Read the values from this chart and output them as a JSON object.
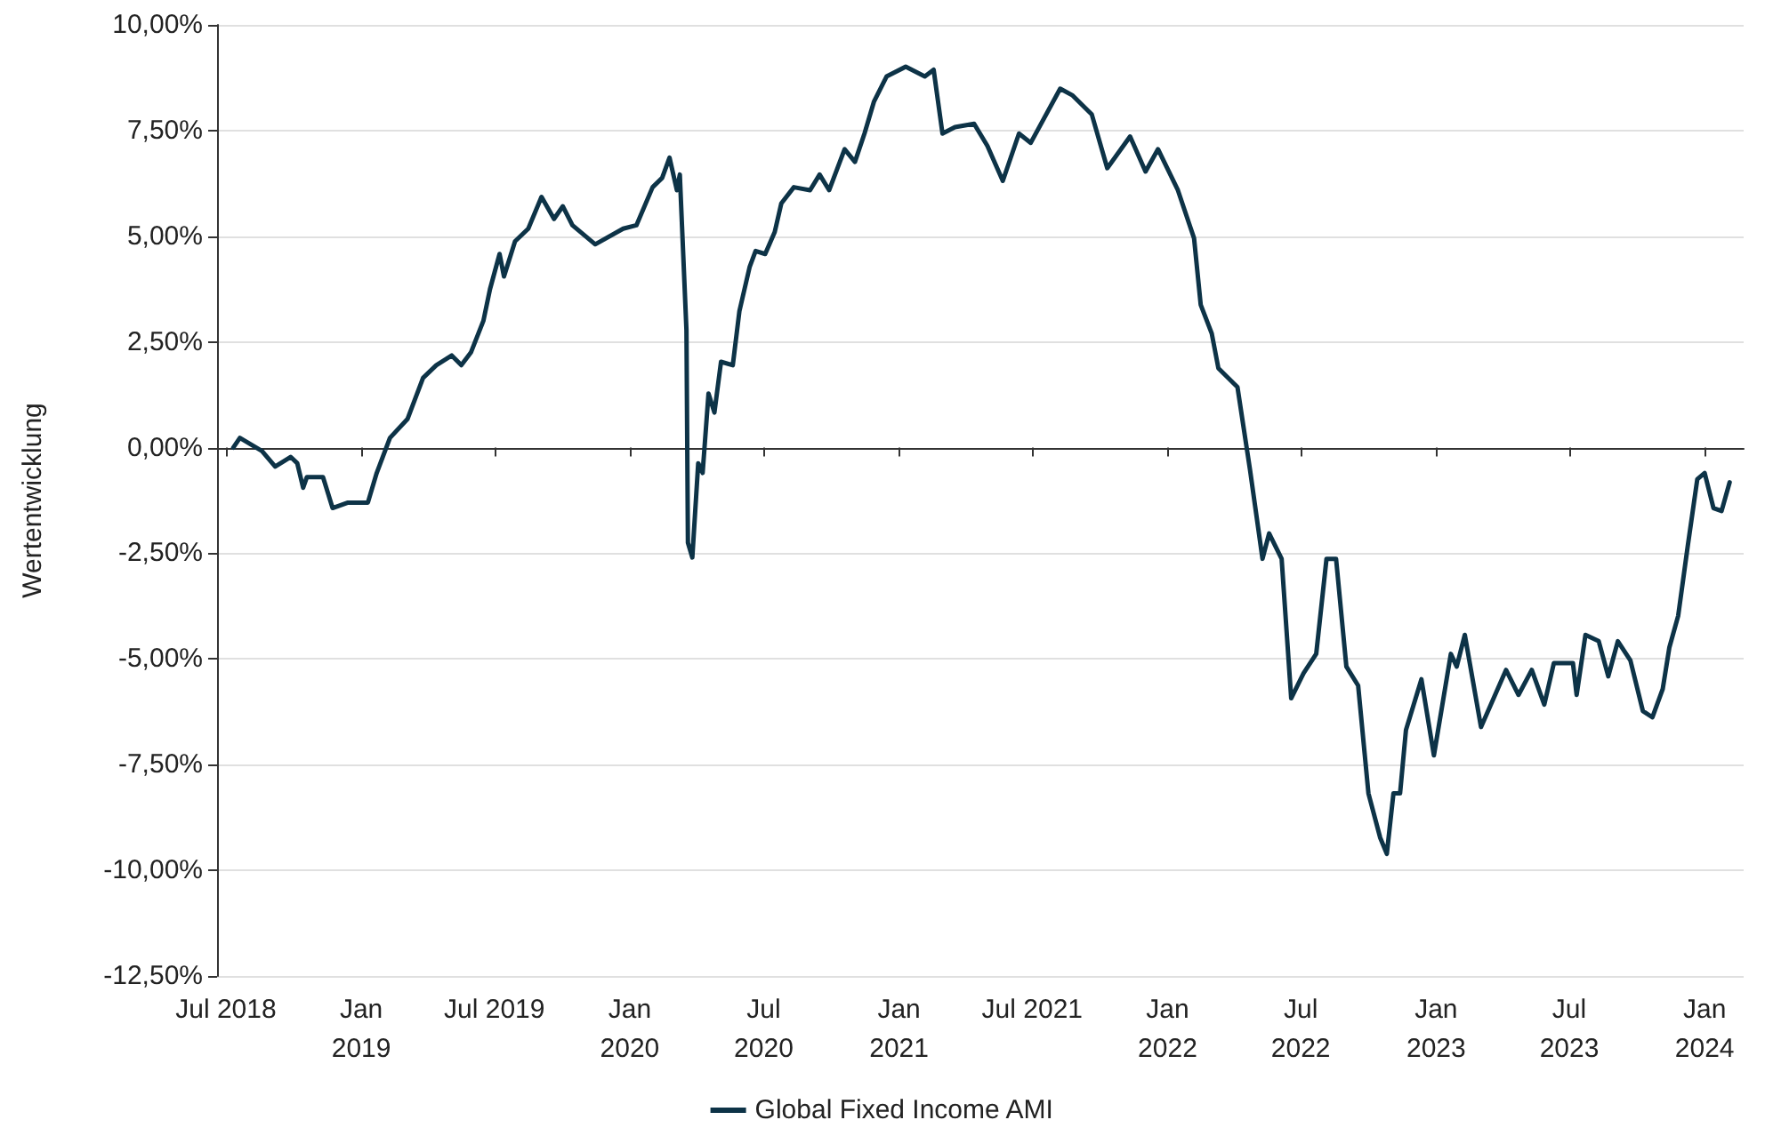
{
  "chart_data": {
    "type": "line",
    "ylabel": "Wertentwicklung",
    "legend": "bottom",
    "grid": "y",
    "marker": "none",
    "line_style": "solid",
    "xlim": [
      "2018-06-19",
      "2024-02-23"
    ],
    "xticks": [
      {
        "value": "2018-07-01",
        "label": "Jul 2018"
      },
      {
        "value": "2019-01-01",
        "label": "Jan\n2019"
      },
      {
        "value": "2019-07-01",
        "label": "Jul 2019"
      },
      {
        "value": "2020-01-01",
        "label": "Jan\n2020"
      },
      {
        "value": "2020-07-01",
        "label": "Jul\n2020"
      },
      {
        "value": "2021-01-01",
        "label": "Jan\n2021"
      },
      {
        "value": "2021-07-01",
        "label": "Jul 2021"
      },
      {
        "value": "2022-01-01",
        "label": "Jan\n2022"
      },
      {
        "value": "2022-07-01",
        "label": "Jul\n2022"
      },
      {
        "value": "2023-01-01",
        "label": "Jan\n2023"
      },
      {
        "value": "2023-07-01",
        "label": "Jul\n2023"
      },
      {
        "value": "2024-01-01",
        "label": "Jan\n2024"
      }
    ],
    "ylim": [
      -12.5,
      10
    ],
    "yticks": [
      {
        "value": -12.5,
        "label": "-12,50%"
      },
      {
        "value": -10,
        "label": "-10,00%"
      },
      {
        "value": -7.5,
        "label": "-7,50%"
      },
      {
        "value": -5,
        "label": "-5,00%"
      },
      {
        "value": -2.5,
        "label": "-2,50%"
      },
      {
        "value": 0,
        "label": "0,00%"
      },
      {
        "value": 2.5,
        "label": "2,50%"
      },
      {
        "value": 5,
        "label": "5,00%"
      },
      {
        "value": 7.5,
        "label": "7,50%"
      },
      {
        "value": 10,
        "label": "10,00%"
      }
    ],
    "x": [
      "2018-07-11",
      "2018-07-20",
      "2018-08-19",
      "2018-09-06",
      "2018-09-27",
      "2018-10-06",
      "2018-10-14",
      "2018-10-19",
      "2018-11-10",
      "2018-11-23",
      "2018-12-14",
      "2019-01-10",
      "2019-01-22",
      "2019-02-09",
      "2019-03-05",
      "2019-03-26",
      "2019-04-13",
      "2019-05-04",
      "2019-05-17",
      "2019-05-30",
      "2019-06-16",
      "2019-06-25",
      "2019-07-08",
      "2019-07-14",
      "2019-07-29",
      "2019-08-16",
      "2019-09-03",
      "2019-09-20",
      "2019-10-02",
      "2019-10-15",
      "2019-11-15",
      "2019-12-23",
      "2020-01-10",
      "2020-02-01",
      "2020-02-14",
      "2020-02-24",
      "2020-03-05",
      "2020-03-09",
      "2020-03-18",
      "2020-03-20",
      "2020-03-26",
      "2020-04-03",
      "2020-04-09",
      "2020-04-17",
      "2020-04-25",
      "2020-05-04",
      "2020-05-20",
      "2020-05-29",
      "2020-06-12",
      "2020-06-20",
      "2020-07-03",
      "2020-07-16",
      "2020-07-25",
      "2020-08-11",
      "2020-09-02",
      "2020-09-15",
      "2020-09-28",
      "2020-10-19",
      "2020-11-02",
      "2020-11-15",
      "2020-11-28",
      "2020-12-15",
      "2021-01-10",
      "2021-02-05",
      "2021-02-17",
      "2021-03-01",
      "2021-03-18",
      "2021-04-13",
      "2021-05-01",
      "2021-05-22",
      "2021-06-13",
      "2021-06-29",
      "2021-08-08",
      "2021-08-25",
      "2021-09-20",
      "2021-10-11",
      "2021-11-11",
      "2021-12-02",
      "2021-12-19",
      "2022-01-15",
      "2022-02-06",
      "2022-02-15",
      "2022-03-02",
      "2022-03-11",
      "2022-04-06",
      "2022-04-23",
      "2022-05-10",
      "2022-05-19",
      "2022-06-05",
      "2022-06-18",
      "2022-07-05",
      "2022-07-22",
      "2022-08-05",
      "2022-08-18",
      "2022-09-01",
      "2022-09-17",
      "2022-10-01",
      "2022-10-17",
      "2022-10-26",
      "2022-11-04",
      "2022-11-13",
      "2022-11-21",
      "2022-12-12",
      "2022-12-29",
      "2023-01-21",
      "2023-01-29",
      "2023-02-09",
      "2023-03-03",
      "2023-04-06",
      "2023-04-23",
      "2023-05-11",
      "2023-05-28",
      "2023-06-10",
      "2023-07-06",
      "2023-07-11",
      "2023-07-23",
      "2023-08-10",
      "2023-08-23",
      "2023-09-05",
      "2023-09-22",
      "2023-10-09",
      "2023-10-22",
      "2023-11-05",
      "2023-11-14",
      "2023-11-26",
      "2023-12-09",
      "2023-12-22",
      "2024-01-01",
      "2024-01-13",
      "2024-01-24",
      "2024-02-04"
    ],
    "series": [
      {
        "name": "Global Fixed Income AMI",
        "color": "#0d3347",
        "values": [
          0.0,
          0.23,
          -0.08,
          -0.45,
          -0.22,
          -0.37,
          -0.95,
          -0.7,
          -0.7,
          -1.43,
          -1.3,
          -1.3,
          -0.6,
          0.23,
          0.68,
          1.65,
          1.95,
          2.18,
          1.95,
          2.25,
          3.0,
          3.75,
          4.58,
          4.05,
          4.88,
          5.18,
          5.93,
          5.41,
          5.71,
          5.26,
          4.81,
          5.18,
          5.26,
          6.16,
          6.38,
          6.86,
          6.09,
          6.46,
          2.78,
          -2.25,
          -2.6,
          -0.37,
          -0.6,
          1.28,
          0.83,
          2.03,
          1.95,
          3.23,
          4.28,
          4.65,
          4.58,
          5.1,
          5.78,
          6.16,
          6.09,
          6.46,
          6.09,
          7.06,
          6.76,
          7.43,
          8.19,
          8.78,
          9.01,
          8.78,
          8.94,
          7.43,
          7.58,
          7.66,
          7.14,
          6.31,
          7.43,
          7.21,
          8.49,
          8.33,
          7.88,
          6.61,
          7.36,
          6.53,
          7.06,
          6.09,
          4.95,
          3.38,
          2.7,
          1.88,
          1.43,
          -0.52,
          -2.63,
          -2.03,
          -2.63,
          -5.93,
          -5.33,
          -4.88,
          -2.63,
          -2.63,
          -5.18,
          -5.63,
          -8.18,
          -9.23,
          -9.61,
          -8.18,
          -8.18,
          -6.68,
          -5.48,
          -7.28,
          -4.88,
          -5.18,
          -4.43,
          -6.61,
          -5.26,
          -5.85,
          -5.26,
          -6.08,
          -5.1,
          -5.1,
          -5.85,
          -4.43,
          -4.58,
          -5.41,
          -4.58,
          -5.03,
          -6.23,
          -6.38,
          -5.71,
          -4.73,
          -3.98,
          -2.33,
          -0.75,
          -0.6,
          -1.43,
          -1.5,
          -0.82
        ]
      }
    ]
  }
}
